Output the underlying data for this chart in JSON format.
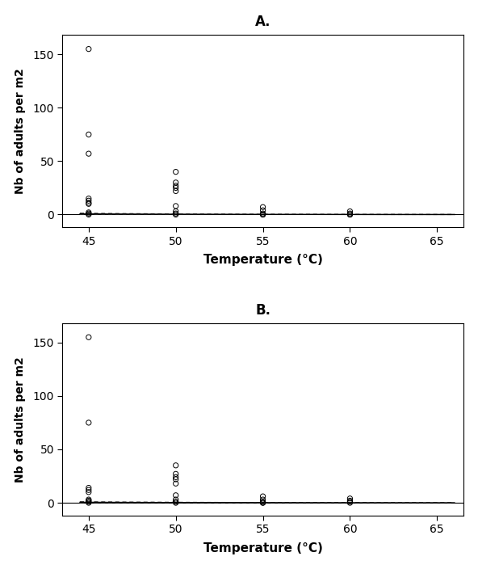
{
  "title_A": "A.",
  "title_B": "B.",
  "xlabel": "Temperature (°C)",
  "ylabel": "Nb of adults per m2",
  "xlim": [
    43.5,
    66.5
  ],
  "ylim": [
    -12,
    168
  ],
  "xticks": [
    45,
    50,
    55,
    60,
    65
  ],
  "yticks": [
    0,
    50,
    100,
    150
  ],
  "background_color": "#ffffff",
  "scatter_A": {
    "x": [
      45,
      45,
      45,
      45,
      45,
      45,
      45,
      45,
      45,
      45,
      50,
      50,
      50,
      50,
      50,
      50,
      50,
      50,
      50,
      55,
      55,
      55,
      55,
      55,
      60,
      60,
      60,
      60
    ],
    "y": [
      155,
      75,
      57,
      15,
      13,
      11,
      10,
      2,
      1,
      0,
      40,
      30,
      27,
      25,
      22,
      8,
      3,
      1,
      0,
      7,
      4,
      1,
      0,
      0,
      3,
      1,
      0,
      0
    ]
  },
  "scatter_B": {
    "x": [
      45,
      45,
      45,
      45,
      45,
      45,
      45,
      45,
      45,
      50,
      50,
      50,
      50,
      50,
      50,
      50,
      50,
      50,
      55,
      55,
      55,
      55,
      55,
      60,
      60,
      60,
      60
    ],
    "y": [
      155,
      75,
      14,
      12,
      10,
      3,
      2,
      1,
      0,
      35,
      27,
      24,
      22,
      18,
      7,
      3,
      1,
      0,
      6,
      3,
      1,
      0,
      0,
      4,
      2,
      1,
      0
    ]
  },
  "fit_color": "#000000",
  "ci_color": "#555555",
  "curve_A": {
    "a_fit": 280.0,
    "b_fit": 0.135,
    "a_upper": 1400.0,
    "b_upper": 0.155,
    "a_lower": 56.0,
    "b_lower": 0.115
  },
  "curve_B": {
    "a_fit": 130.0,
    "b_fit": 0.125,
    "a_upper": 700.0,
    "b_upper": 0.145,
    "a_lower": 25.0,
    "b_lower": 0.105
  }
}
